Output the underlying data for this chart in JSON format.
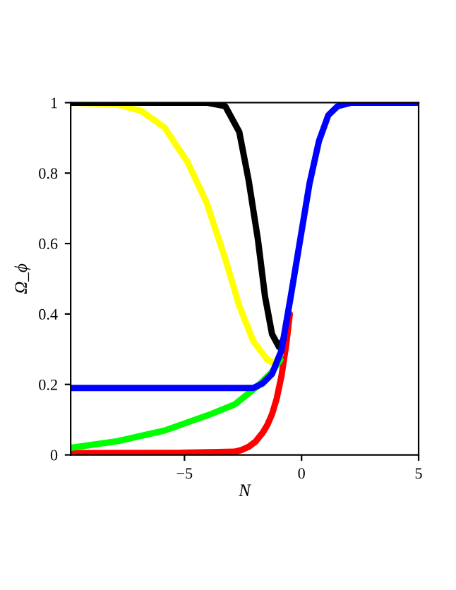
{
  "chart_data": {
    "type": "line",
    "xlabel": "N",
    "ylabel": "Ω_ϕ",
    "xlim": [
      -9.86,
      5
    ],
    "ylim": [
      0,
      1
    ],
    "xticks": [
      {
        "value": -5,
        "label": "−5"
      },
      0,
      5
    ],
    "yticks": [
      0,
      0.2,
      0.4,
      0.6,
      0.8,
      1
    ],
    "grid": false,
    "legend": false,
    "marker": "none",
    "line_style": "solid",
    "series": [
      {
        "color": "#ff0000",
        "x": [
          -9.86,
          -5,
          -2.86,
          -2.56,
          -2.26,
          -1.96,
          -1.66,
          -1.46,
          -1.26,
          -1.06,
          -0.86,
          -0.66,
          -0.5
        ],
        "values": [
          0.005,
          0.006,
          0.009,
          0.014,
          0.023,
          0.038,
          0.063,
          0.085,
          0.116,
          0.16,
          0.223,
          0.31,
          0.4
        ]
      },
      {
        "color": "#00ff00",
        "x": [
          -9.86,
          -7.86,
          -5.86,
          -3.86,
          -2.86,
          -1.86,
          -1.26,
          -0.9
        ],
        "values": [
          0.02,
          0.039,
          0.069,
          0.116,
          0.143,
          0.196,
          0.236,
          0.27
        ]
      },
      {
        "color": "#ffff00",
        "x": [
          -9.86,
          -7.86,
          -6.86,
          -5.86,
          -4.86,
          -4.06,
          -3.26,
          -2.66,
          -2.06,
          -1.46,
          -1.16,
          -0.9
        ],
        "values": [
          1.0,
          0.995,
          0.977,
          0.93,
          0.83,
          0.717,
          0.557,
          0.423,
          0.323,
          0.27,
          0.26,
          0.285
        ]
      },
      {
        "color": "#000000",
        "x": [
          -9.86,
          -4.06,
          -3.26,
          -2.66,
          -2.26,
          -1.86,
          -1.56,
          -1.26,
          -0.96,
          -0.76
        ],
        "values": [
          1.0,
          1.0,
          0.99,
          0.917,
          0.78,
          0.61,
          0.45,
          0.343,
          0.306,
          0.33
        ]
      },
      {
        "color": "#0000ff",
        "x": [
          -9.86,
          -2.06,
          -1.66,
          -1.26,
          -0.86,
          -0.46,
          -0.06,
          0.34,
          0.74,
          1.14,
          1.54,
          2.14,
          5
        ],
        "values": [
          0.19,
          0.19,
          0.203,
          0.23,
          0.296,
          0.45,
          0.61,
          0.77,
          0.89,
          0.964,
          0.99,
          1.0,
          1.0
        ]
      }
    ]
  }
}
